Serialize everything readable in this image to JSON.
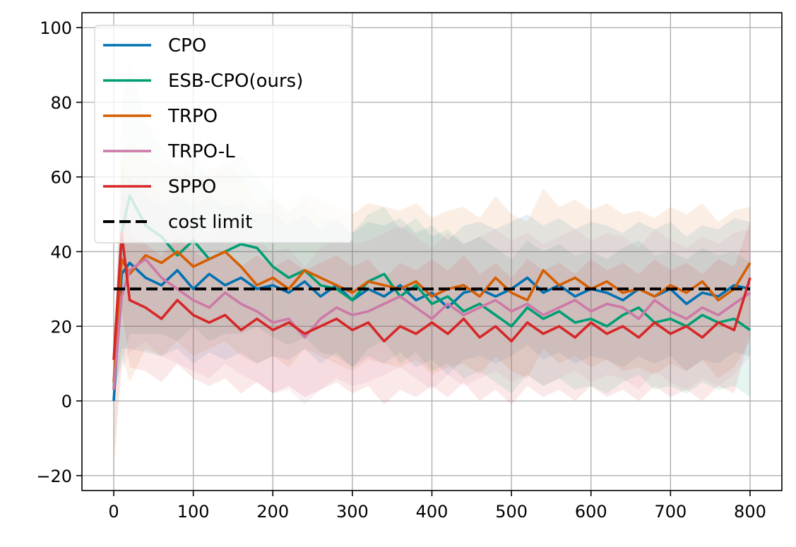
{
  "chart_data": {
    "type": "line",
    "title": "",
    "xlabel": "",
    "ylabel": "",
    "xlim": [
      -40,
      840
    ],
    "ylim": [
      -24,
      104
    ],
    "xticks": [
      0,
      100,
      200,
      300,
      400,
      500,
      600,
      700,
      800
    ],
    "yticks": [
      -20,
      0,
      20,
      40,
      60,
      80,
      100
    ],
    "xtick_labels": [
      "0",
      "100",
      "200",
      "300",
      "400",
      "500",
      "600",
      "700",
      "800"
    ],
    "ytick_labels": [
      "−20",
      "0",
      "20",
      "40",
      "60",
      "80",
      "100"
    ],
    "grid": true,
    "legend_position": "upper-left",
    "series": [
      {
        "name": "CPO",
        "color": "#0072b2",
        "x": [
          0,
          10,
          20,
          40,
          60,
          80,
          100,
          120,
          140,
          160,
          180,
          200,
          220,
          240,
          260,
          280,
          300,
          320,
          340,
          360,
          380,
          400,
          420,
          440,
          460,
          480,
          500,
          520,
          540,
          560,
          580,
          600,
          620,
          640,
          660,
          680,
          700,
          720,
          740,
          760,
          780,
          800
        ],
        "y": [
          0,
          34,
          37,
          33,
          31,
          35,
          30,
          34,
          31,
          33,
          30,
          31,
          29,
          32,
          28,
          31,
          27,
          30,
          28,
          31,
          27,
          29,
          25,
          29,
          30,
          28,
          30,
          33,
          29,
          31,
          28,
          30,
          29,
          27,
          30,
          28,
          30,
          26,
          29,
          28,
          31,
          30
        ]
      },
      {
        "name": "ESB-CPO(ours)",
        "color": "#009e73",
        "x": [
          0,
          10,
          20,
          40,
          60,
          80,
          100,
          120,
          140,
          160,
          180,
          200,
          220,
          240,
          260,
          280,
          300,
          320,
          340,
          360,
          380,
          400,
          420,
          440,
          460,
          480,
          500,
          520,
          540,
          560,
          580,
          600,
          620,
          640,
          660,
          680,
          700,
          720,
          740,
          760,
          780,
          800
        ],
        "y": [
          3,
          45,
          55,
          47,
          44,
          39,
          43,
          38,
          40,
          42,
          41,
          36,
          33,
          35,
          31,
          30,
          27,
          32,
          34,
          28,
          31,
          26,
          28,
          24,
          26,
          23,
          20,
          25,
          22,
          24,
          21,
          22,
          20,
          23,
          25,
          21,
          22,
          20,
          23,
          21,
          22,
          19
        ]
      },
      {
        "name": "TRPO",
        "color": "#d55e00",
        "x": [
          0,
          10,
          20,
          40,
          60,
          80,
          100,
          120,
          140,
          160,
          180,
          200,
          220,
          240,
          260,
          280,
          300,
          320,
          340,
          360,
          380,
          400,
          420,
          440,
          460,
          480,
          500,
          520,
          540,
          560,
          580,
          600,
          620,
          640,
          660,
          680,
          700,
          720,
          740,
          760,
          780,
          800
        ],
        "y": [
          5,
          38,
          34,
          39,
          37,
          40,
          36,
          38,
          40,
          36,
          31,
          33,
          30,
          35,
          33,
          31,
          29,
          32,
          31,
          30,
          32,
          28,
          30,
          31,
          28,
          33,
          29,
          27,
          35,
          31,
          33,
          30,
          32,
          29,
          30,
          28,
          31,
          29,
          32,
          27,
          30,
          37
        ]
      },
      {
        "name": "TRPO-L",
        "color": "#cc79a7",
        "x": [
          0,
          10,
          20,
          40,
          60,
          80,
          100,
          120,
          140,
          160,
          180,
          200,
          220,
          240,
          260,
          280,
          300,
          320,
          340,
          360,
          380,
          400,
          420,
          440,
          460,
          480,
          500,
          520,
          540,
          560,
          580,
          600,
          620,
          640,
          660,
          680,
          700,
          720,
          740,
          760,
          780,
          800
        ],
        "y": [
          3,
          28,
          35,
          38,
          33,
          30,
          27,
          25,
          29,
          26,
          24,
          21,
          22,
          17,
          22,
          25,
          23,
          24,
          26,
          28,
          25,
          22,
          26,
          23,
          25,
          27,
          24,
          26,
          23,
          25,
          27,
          24,
          26,
          25,
          22,
          27,
          24,
          22,
          25,
          23,
          26,
          29
        ]
      },
      {
        "name": "SPPO",
        "color": "#d62728",
        "x": [
          0,
          10,
          20,
          40,
          60,
          80,
          100,
          120,
          140,
          160,
          180,
          200,
          220,
          240,
          260,
          280,
          300,
          320,
          340,
          360,
          380,
          400,
          420,
          440,
          460,
          480,
          500,
          520,
          540,
          560,
          580,
          600,
          620,
          640,
          660,
          680,
          700,
          720,
          740,
          760,
          780,
          800
        ],
        "y": [
          11,
          45,
          27,
          25,
          22,
          27,
          23,
          21,
          23,
          19,
          22,
          19,
          21,
          18,
          20,
          22,
          19,
          21,
          16,
          20,
          18,
          21,
          18,
          22,
          17,
          20,
          16,
          21,
          18,
          20,
          17,
          21,
          18,
          20,
          17,
          21,
          18,
          20,
          17,
          21,
          19,
          33
        ]
      },
      {
        "name": "cost limit",
        "color": "#000000",
        "dashed": true,
        "x": [
          0,
          800
        ],
        "y": [
          30,
          30
        ]
      }
    ],
    "bands": [
      {
        "series": "CPO",
        "color": "#0072b2",
        "upper": [
          0,
          55,
          60,
          55,
          52,
          55,
          52,
          55,
          52,
          53,
          50,
          50,
          47,
          50,
          46,
          49,
          45,
          48,
          47,
          49,
          45,
          47,
          43,
          47,
          48,
          46,
          48,
          50,
          47,
          49,
          46,
          48,
          47,
          45,
          48,
          46,
          48,
          44,
          47,
          46,
          49,
          48
        ],
        "lower": [
          0,
          14,
          14,
          13,
          12,
          14,
          10,
          13,
          11,
          13,
          10,
          12,
          11,
          14,
          10,
          13,
          9,
          12,
          10,
          13,
          9,
          11,
          7,
          11,
          12,
          10,
          12,
          15,
          11,
          13,
          10,
          12,
          11,
          9,
          12,
          10,
          12,
          8,
          11,
          10,
          13,
          12
        ]
      },
      {
        "series": "ESB-CPO(ours)",
        "color": "#009e73",
        "upper": [
          3,
          80,
          90,
          75,
          68,
          62,
          66,
          60,
          62,
          66,
          60,
          55,
          51,
          53,
          49,
          48,
          45,
          50,
          52,
          46,
          49,
          44,
          46,
          42,
          44,
          41,
          38,
          43,
          40,
          42,
          39,
          40,
          38,
          41,
          43,
          39,
          40,
          38,
          41,
          39,
          40,
          37
        ],
        "lower": [
          3,
          10,
          18,
          18,
          18,
          16,
          20,
          16,
          18,
          18,
          20,
          17,
          15,
          17,
          13,
          12,
          9,
          14,
          16,
          10,
          13,
          8,
          10,
          6,
          8,
          5,
          2,
          7,
          4,
          6,
          3,
          4,
          2,
          5,
          7,
          3,
          4,
          2,
          5,
          3,
          4,
          1
        ]
      },
      {
        "series": "TRPO",
        "color": "#d55e00",
        "upper": [
          -10,
          65,
          70,
          65,
          62,
          64,
          60,
          62,
          64,
          60,
          52,
          54,
          50,
          56,
          54,
          52,
          50,
          53,
          52,
          51,
          53,
          49,
          51,
          52,
          49,
          55,
          50,
          48,
          57,
          52,
          54,
          51,
          53,
          50,
          51,
          49,
          52,
          50,
          53,
          48,
          51,
          52
        ],
        "lower": [
          -20,
          12,
          5,
          14,
          12,
          16,
          12,
          14,
          16,
          12,
          10,
          12,
          9,
          14,
          12,
          10,
          8,
          11,
          10,
          9,
          11,
          7,
          9,
          10,
          7,
          12,
          8,
          6,
          14,
          10,
          12,
          9,
          11,
          8,
          9,
          7,
          10,
          8,
          11,
          6,
          9,
          16
        ]
      },
      {
        "series": "TRPO-L",
        "color": "#cc79a7",
        "upper": [
          3,
          50,
          58,
          60,
          54,
          50,
          46,
          44,
          48,
          45,
          43,
          40,
          41,
          36,
          41,
          44,
          42,
          43,
          45,
          47,
          44,
          41,
          45,
          42,
          44,
          46,
          43,
          45,
          42,
          44,
          46,
          43,
          45,
          44,
          41,
          46,
          43,
          41,
          44,
          42,
          45,
          46
        ],
        "lower": [
          -15,
          8,
          13,
          16,
          12,
          10,
          8,
          6,
          10,
          7,
          5,
          2,
          3,
          -1,
          3,
          6,
          4,
          5,
          7,
          9,
          6,
          3,
          7,
          4,
          6,
          8,
          5,
          7,
          4,
          6,
          8,
          5,
          7,
          6,
          3,
          8,
          5,
          3,
          6,
          4,
          7,
          12
        ]
      },
      {
        "series": "SPPO",
        "color": "#d62728",
        "upper": [
          11,
          65,
          45,
          42,
          39,
          44,
          40,
          38,
          40,
          36,
          39,
          36,
          38,
          35,
          37,
          39,
          36,
          38,
          33,
          37,
          35,
          38,
          35,
          39,
          34,
          37,
          33,
          38,
          35,
          37,
          34,
          38,
          35,
          37,
          34,
          38,
          35,
          37,
          34,
          38,
          36,
          48
        ],
        "lower": [
          11,
          25,
          9,
          8,
          5,
          10,
          6,
          4,
          6,
          2,
          5,
          2,
          4,
          1,
          3,
          5,
          2,
          4,
          -1,
          3,
          1,
          4,
          1,
          5,
          0,
          3,
          -1,
          4,
          1,
          3,
          0,
          4,
          1,
          3,
          0,
          4,
          1,
          3,
          0,
          4,
          2,
          18
        ]
      }
    ]
  }
}
